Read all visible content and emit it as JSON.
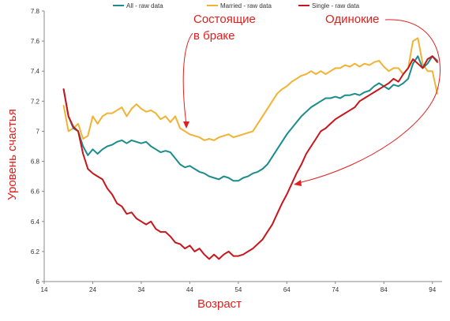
{
  "chart_data": {
    "type": "line",
    "xlabel": "Возраст",
    "ylabel": "Уровень счастья",
    "xlim": [
      14,
      96
    ],
    "ylim": [
      6,
      7.8
    ],
    "xticks": [
      14,
      24,
      34,
      44,
      54,
      64,
      74,
      84,
      94
    ],
    "yticks": [
      6,
      6.2,
      6.4,
      6.6,
      6.8,
      7,
      7.2,
      7.4,
      7.6,
      7.8
    ],
    "ytick_labels": [
      "6",
      "6.2",
      "6.4",
      "6.6",
      "6.8",
      "7",
      "7.2",
      "7.4",
      "7.6",
      "7.8"
    ],
    "legend": {
      "placement": "top"
    },
    "grid": false,
    "series": [
      {
        "name": "All - raw data",
        "color": "#1a8c8c",
        "x": [
          18,
          19,
          20,
          21,
          22,
          23,
          24,
          25,
          26,
          27,
          28,
          29,
          30,
          31,
          32,
          33,
          34,
          35,
          36,
          37,
          38,
          39,
          40,
          41,
          42,
          43,
          44,
          45,
          46,
          47,
          48,
          49,
          50,
          51,
          52,
          53,
          54,
          55,
          56,
          57,
          58,
          59,
          60,
          61,
          62,
          63,
          64,
          65,
          66,
          67,
          68,
          69,
          70,
          71,
          72,
          73,
          74,
          75,
          76,
          77,
          78,
          79,
          80,
          81,
          82,
          83,
          84,
          85,
          86,
          87,
          88,
          89,
          90,
          91,
          92,
          93,
          94,
          95
        ],
        "values": [
          7.28,
          7.1,
          7.02,
          7.0,
          6.9,
          6.84,
          6.88,
          6.85,
          6.88,
          6.9,
          6.91,
          6.93,
          6.94,
          6.92,
          6.94,
          6.93,
          6.92,
          6.93,
          6.9,
          6.88,
          6.86,
          6.87,
          6.86,
          6.82,
          6.78,
          6.76,
          6.77,
          6.75,
          6.73,
          6.72,
          6.7,
          6.69,
          6.68,
          6.7,
          6.69,
          6.67,
          6.67,
          6.69,
          6.7,
          6.72,
          6.73,
          6.75,
          6.78,
          6.83,
          6.88,
          6.93,
          6.98,
          7.02,
          7.06,
          7.1,
          7.13,
          7.16,
          7.18,
          7.2,
          7.22,
          7.22,
          7.23,
          7.22,
          7.24,
          7.24,
          7.25,
          7.24,
          7.26,
          7.27,
          7.3,
          7.32,
          7.3,
          7.28,
          7.31,
          7.3,
          7.32,
          7.35,
          7.45,
          7.5,
          7.42,
          7.45,
          7.5,
          7.47
        ]
      },
      {
        "name": "Married - raw data",
        "color": "#f2b233",
        "x": [
          18,
          19,
          20,
          21,
          22,
          23,
          24,
          25,
          26,
          27,
          28,
          29,
          30,
          31,
          32,
          33,
          34,
          35,
          36,
          37,
          38,
          39,
          40,
          41,
          42,
          43,
          44,
          45,
          46,
          47,
          48,
          49,
          50,
          51,
          52,
          53,
          54,
          55,
          56,
          57,
          58,
          59,
          60,
          61,
          62,
          63,
          64,
          65,
          66,
          67,
          68,
          69,
          70,
          71,
          72,
          73,
          74,
          75,
          76,
          77,
          78,
          79,
          80,
          81,
          82,
          83,
          84,
          85,
          86,
          87,
          88,
          89,
          90,
          91,
          92,
          93,
          94,
          95
        ],
        "values": [
          7.17,
          7.0,
          7.02,
          7.05,
          6.95,
          6.97,
          7.1,
          7.05,
          7.1,
          7.12,
          7.12,
          7.14,
          7.16,
          7.1,
          7.15,
          7.18,
          7.15,
          7.13,
          7.14,
          7.12,
          7.08,
          7.1,
          7.06,
          7.1,
          7.02,
          7.0,
          6.98,
          6.97,
          6.96,
          6.94,
          6.95,
          6.94,
          6.96,
          6.97,
          6.98,
          6.96,
          6.97,
          6.98,
          6.99,
          7.0,
          7.05,
          7.1,
          7.15,
          7.2,
          7.25,
          7.28,
          7.3,
          7.33,
          7.35,
          7.37,
          7.38,
          7.4,
          7.38,
          7.4,
          7.38,
          7.4,
          7.42,
          7.42,
          7.44,
          7.43,
          7.45,
          7.43,
          7.45,
          7.44,
          7.46,
          7.47,
          7.43,
          7.4,
          7.42,
          7.42,
          7.38,
          7.42,
          7.6,
          7.62,
          7.45,
          7.4,
          7.4,
          7.25
        ]
      },
      {
        "name": "Single - raw data",
        "color": "#c8161d",
        "x": [
          18,
          19,
          20,
          21,
          22,
          23,
          24,
          25,
          26,
          27,
          28,
          29,
          30,
          31,
          32,
          33,
          34,
          35,
          36,
          37,
          38,
          39,
          40,
          41,
          42,
          43,
          44,
          45,
          46,
          47,
          48,
          49,
          50,
          51,
          52,
          53,
          54,
          55,
          56,
          57,
          58,
          59,
          60,
          61,
          62,
          63,
          64,
          65,
          66,
          67,
          68,
          69,
          70,
          71,
          72,
          73,
          74,
          75,
          76,
          77,
          78,
          79,
          80,
          81,
          82,
          83,
          84,
          85,
          86,
          87,
          88,
          89,
          90,
          91,
          92,
          93,
          94,
          95
        ],
        "values": [
          7.28,
          7.1,
          7.03,
          7.0,
          6.85,
          6.75,
          6.72,
          6.7,
          6.68,
          6.62,
          6.58,
          6.52,
          6.5,
          6.45,
          6.46,
          6.42,
          6.4,
          6.38,
          6.4,
          6.35,
          6.33,
          6.33,
          6.3,
          6.26,
          6.25,
          6.22,
          6.24,
          6.2,
          6.22,
          6.18,
          6.15,
          6.18,
          6.15,
          6.18,
          6.2,
          6.17,
          6.17,
          6.18,
          6.2,
          6.22,
          6.25,
          6.28,
          6.33,
          6.38,
          6.45,
          6.52,
          6.58,
          6.65,
          6.72,
          6.78,
          6.85,
          6.9,
          6.95,
          7.0,
          7.02,
          7.05,
          7.08,
          7.1,
          7.12,
          7.14,
          7.16,
          7.2,
          7.22,
          7.24,
          7.26,
          7.28,
          7.3,
          7.32,
          7.35,
          7.33,
          7.38,
          7.42,
          7.48,
          7.45,
          7.42,
          7.48,
          7.5,
          7.46
        ]
      }
    ],
    "annotations": [
      {
        "id": "married",
        "lines": [
          "Состоящие",
          "в браке"
        ],
        "color": "#e0201e"
      },
      {
        "id": "single",
        "lines": [
          "Одинокие"
        ],
        "color": "#e0201e"
      }
    ]
  }
}
